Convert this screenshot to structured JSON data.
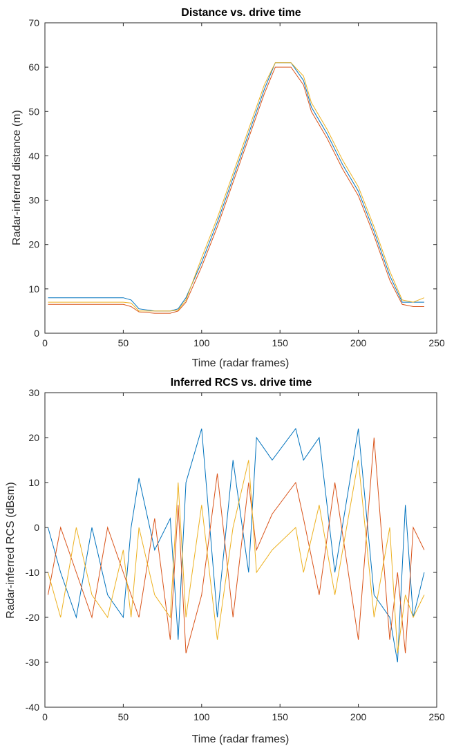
{
  "chart_data": [
    {
      "type": "line",
      "title": "Distance vs. drive time",
      "xlabel": "Time (radar frames)",
      "ylabel": "Radar-inferred distance (m)",
      "xlim": [
        0,
        250
      ],
      "ylim": [
        0,
        70
      ],
      "xticks": [
        0,
        50,
        100,
        150,
        200,
        250
      ],
      "yticks": [
        0,
        10,
        20,
        30,
        40,
        50,
        60,
        70
      ],
      "grid": false,
      "legend": "none",
      "series_style": "many overlapping noisy tracks",
      "series": [
        {
          "x": [
            2,
            10,
            20,
            30,
            40,
            50,
            55,
            60,
            70,
            80,
            85,
            90,
            100,
            110,
            120,
            130,
            140,
            147,
            157,
            165,
            170,
            180,
            190,
            200,
            210,
            220,
            228,
            235,
            242
          ],
          "y": [
            8,
            8,
            8,
            8,
            8,
            8,
            7.5,
            5.5,
            5,
            5,
            5.5,
            8,
            16,
            25,
            35,
            45,
            55,
            61,
            61,
            57,
            51,
            45,
            38,
            32,
            23,
            13,
            7,
            7,
            7
          ]
        },
        {
          "x": [
            2,
            10,
            20,
            30,
            40,
            50,
            55,
            60,
            70,
            80,
            85,
            90,
            100,
            110,
            120,
            130,
            140,
            147,
            157,
            165,
            170,
            180,
            190,
            200,
            210,
            220,
            228,
            235,
            242
          ],
          "y": [
            6.5,
            6.5,
            6.5,
            6.5,
            6.5,
            6.5,
            6,
            4.8,
            4.5,
            4.5,
            5,
            7,
            15,
            24,
            34,
            44,
            54,
            60,
            60,
            56,
            50,
            44,
            37,
            31,
            22,
            12,
            6.5,
            6,
            6
          ]
        },
        {
          "x": [
            2,
            10,
            20,
            30,
            40,
            50,
            55,
            60,
            70,
            80,
            85,
            90,
            100,
            110,
            120,
            130,
            140,
            147,
            157,
            165,
            170,
            180,
            190,
            200,
            210,
            220,
            228,
            235,
            242
          ],
          "y": [
            7,
            7,
            7,
            7,
            7,
            7,
            6.8,
            5,
            5,
            5,
            5.2,
            7.5,
            17,
            26,
            36,
            46,
            56,
            61,
            61,
            58,
            52,
            46,
            39,
            33,
            24,
            14,
            7.5,
            7,
            8
          ]
        }
      ]
    },
    {
      "type": "line",
      "title": "Inferred RCS vs. drive time",
      "xlabel": "Time (radar frames)",
      "ylabel": "Radar-inferred RCS (dBsm)",
      "xlim": [
        0,
        250
      ],
      "ylim": [
        -40,
        30
      ],
      "xticks": [
        0,
        50,
        100,
        150,
        200,
        250
      ],
      "yticks": [
        -40,
        -30,
        -20,
        -10,
        0,
        10,
        20,
        30
      ],
      "grid": false,
      "legend": "none",
      "series_style": "many overlapping noisy tracks",
      "series": [
        {
          "x": [
            2,
            10,
            20,
            30,
            40,
            50,
            55,
            60,
            70,
            80,
            85,
            90,
            100,
            110,
            120,
            130,
            135,
            145,
            160,
            165,
            175,
            185,
            200,
            210,
            220,
            225,
            230,
            235,
            242
          ],
          "y": [
            0,
            -10,
            -20,
            0,
            -15,
            -20,
            0,
            11,
            -5,
            2,
            -25,
            10,
            22,
            -20,
            15,
            -10,
            20,
            15,
            22,
            15,
            20,
            -10,
            22,
            -15,
            -20,
            -30,
            5,
            -20,
            -10
          ]
        },
        {
          "x": [
            2,
            10,
            20,
            30,
            40,
            50,
            55,
            60,
            70,
            80,
            85,
            90,
            100,
            110,
            120,
            130,
            135,
            145,
            160,
            165,
            175,
            185,
            200,
            210,
            220,
            225,
            230,
            235,
            242
          ],
          "y": [
            -15,
            0,
            -10,
            -20,
            0,
            -10,
            -15,
            -20,
            2,
            -25,
            5,
            -28,
            -15,
            12,
            -20,
            10,
            -5,
            3,
            10,
            2,
            -15,
            10,
            -25,
            20,
            -25,
            -10,
            -28,
            0,
            -5
          ]
        },
        {
          "x": [
            2,
            10,
            20,
            30,
            40,
            50,
            55,
            60,
            70,
            80,
            85,
            90,
            100,
            110,
            120,
            130,
            135,
            145,
            160,
            165,
            175,
            185,
            200,
            210,
            220,
            225,
            230,
            235,
            242
          ],
          "y": [
            -10,
            -20,
            0,
            -15,
            -20,
            -5,
            -20,
            0,
            -15,
            -20,
            10,
            -20,
            5,
            -25,
            0,
            15,
            -10,
            -5,
            0,
            -10,
            5,
            -15,
            15,
            -20,
            0,
            -28,
            -15,
            -20,
            -15
          ]
        }
      ]
    }
  ],
  "colors": {
    "series": [
      "#0072BD",
      "#D95319",
      "#EDB120",
      "#7E2F8E",
      "#77AC30",
      "#4DBEEE",
      "#A2142F"
    ],
    "axes": "#262626",
    "background": "#ffffff"
  }
}
